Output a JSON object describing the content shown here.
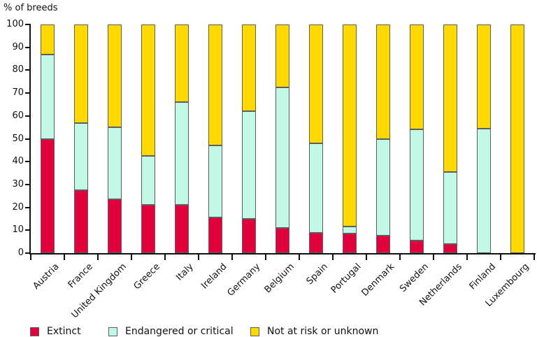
{
  "chart_data": {
    "type": "bar",
    "subtype": "stacked-vertical",
    "ylabel": "% of breeds",
    "xlabel": "",
    "ylim": [
      0,
      100
    ],
    "yticks": [
      0,
      10,
      20,
      30,
      40,
      50,
      60,
      70,
      80,
      90,
      100
    ],
    "grid": false,
    "legend_position": "bottom",
    "categories": [
      "Austria",
      "France",
      "United Kingdom",
      "Greece",
      "Italy",
      "Ireland",
      "Germany",
      "Belgium",
      "Spain",
      "Portugal",
      "Denmark",
      "Sweden",
      "Netherlands",
      "Finland",
      "Luxembourg"
    ],
    "series": [
      {
        "name": "Extinct",
        "color": "#E1003C",
        "values": [
          50,
          27.5,
          23.5,
          21,
          21,
          15.5,
          15,
          11,
          9,
          8.5,
          7.5,
          5.5,
          4,
          0,
          0
        ]
      },
      {
        "name": "Endangered or critical",
        "color": "#C1F8E6",
        "values": [
          37,
          29.5,
          31.5,
          21.5,
          45,
          31.5,
          47,
          61.5,
          39,
          3,
          42.5,
          48.5,
          31.5,
          54.5,
          0
        ]
      },
      {
        "name": "Not at risk or unknown",
        "color": "#FFD800",
        "values": [
          13,
          43,
          45,
          57.5,
          34,
          53,
          38,
          27.5,
          52,
          88.5,
          50,
          46,
          64.5,
          45.5,
          100
        ]
      }
    ]
  }
}
